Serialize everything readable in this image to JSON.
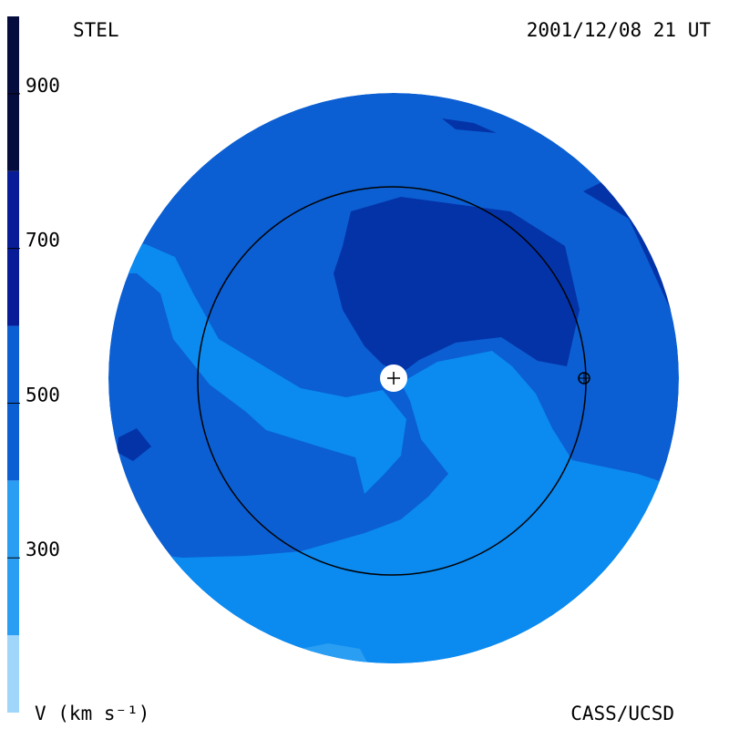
{
  "header": {
    "left": "STEL",
    "right": "2001/12/08 21 UT"
  },
  "colorbar": {
    "lim": [
      100,
      1000
    ],
    "ticks": [
      300,
      500,
      700,
      900
    ],
    "label": "V (km s⁻¹)",
    "bands": [
      {
        "from": 100,
        "to": 200,
        "color": "#9fd6fa"
      },
      {
        "from": 200,
        "to": 400,
        "color": "#2a9ef2"
      },
      {
        "from": 400,
        "to": 600,
        "color": "#0b5fd2"
      },
      {
        "from": 600,
        "to": 800,
        "color": "#081c98"
      },
      {
        "from": 800,
        "to": 1000,
        "color": "#050c3e"
      }
    ]
  },
  "footer": {
    "right": "CASS/UCSD"
  }
}
